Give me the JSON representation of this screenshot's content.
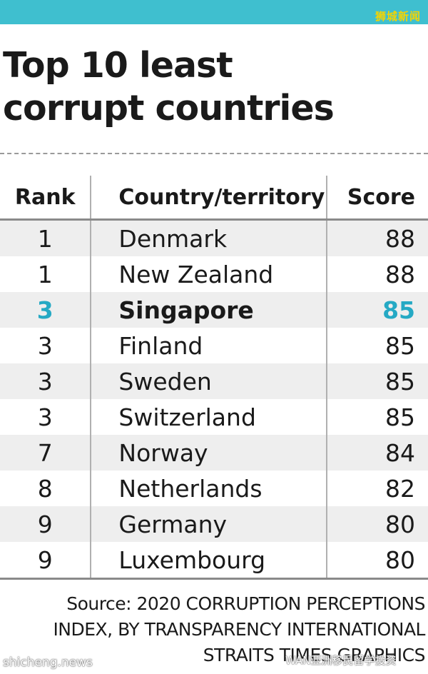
{
  "header": {
    "brand_mark": "狮城新闻"
  },
  "title": {
    "line1": "Top 10 least",
    "line2": "corrupt countries"
  },
  "table": {
    "columns": [
      "Rank",
      "Country/territory",
      "Score"
    ],
    "rows": [
      {
        "rank": "1",
        "country": "Denmark",
        "score": "88"
      },
      {
        "rank": "1",
        "country": "New Zealand",
        "score": "88"
      },
      {
        "rank": "3",
        "country": "Singapore",
        "score": "85"
      },
      {
        "rank": "3",
        "country": "Finland",
        "score": "85"
      },
      {
        "rank": "3",
        "country": "Sweden",
        "score": "85"
      },
      {
        "rank": "3",
        "country": "Switzerland",
        "score": "85"
      },
      {
        "rank": "7",
        "country": "Norway",
        "score": "84"
      },
      {
        "rank": "8",
        "country": "Netherlands",
        "score": "82"
      },
      {
        "rank": "9",
        "country": "Germany",
        "score": "80"
      },
      {
        "rank": "9",
        "country": "Luxembourg",
        "score": "80"
      }
    ],
    "highlight_color": "#25a9c4"
  },
  "source": {
    "line1": "Source: 2020 CORRUPTION PERCEPTIONS",
    "line2": "INDEX, BY TRANSPARENCY INTERNATIONAL",
    "line3": "STRAITS TIMES GRAPHICS"
  },
  "watermarks": {
    "site": "shicheng.news",
    "wechat": "WAN亚洲移民留学投资"
  },
  "colors": {
    "topbar": "#3fbfcf",
    "brand_mark": "#f5d400"
  }
}
